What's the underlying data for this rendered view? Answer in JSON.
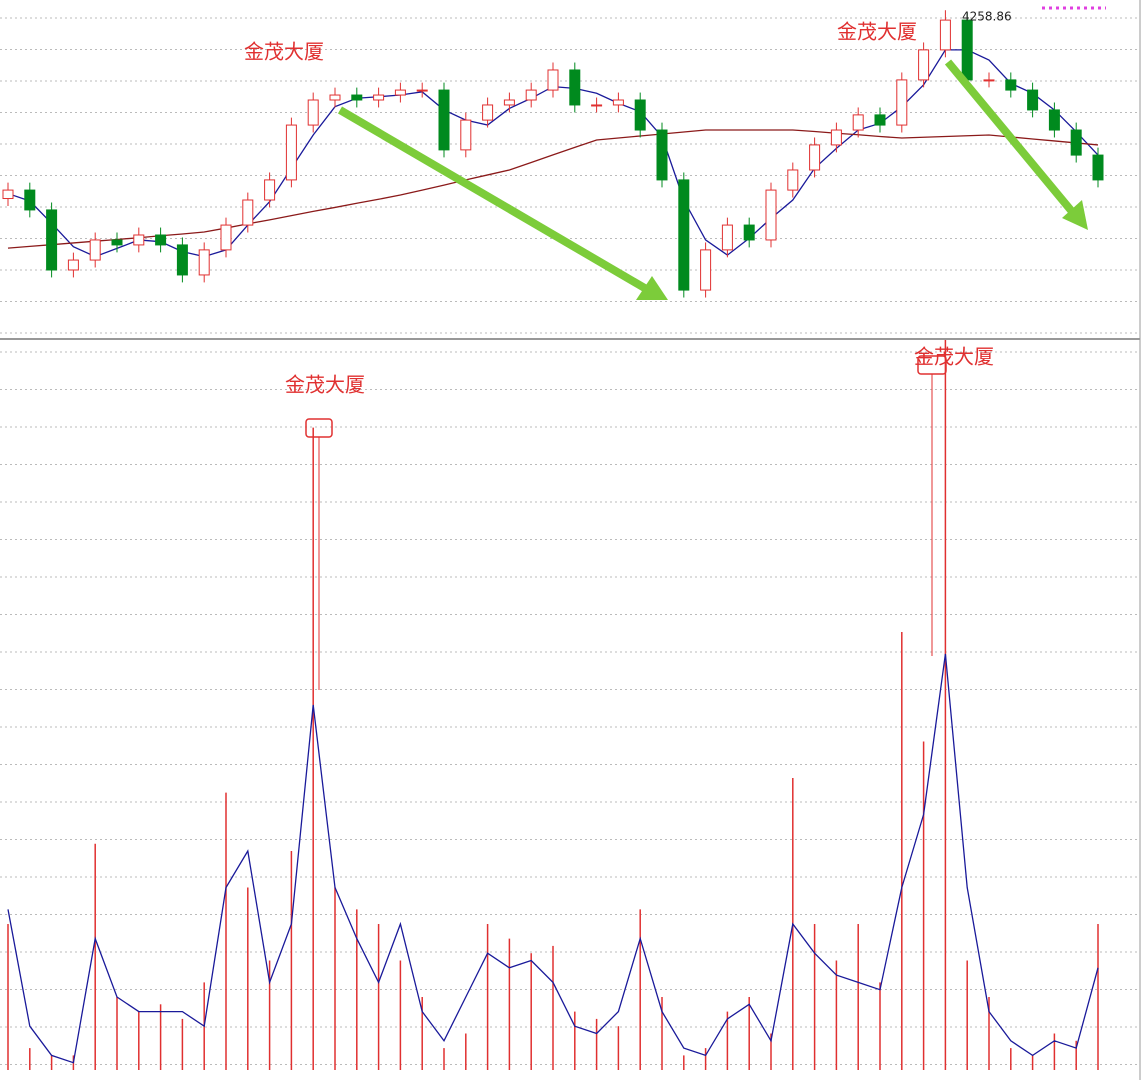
{
  "chart_data": {
    "type": "candlestick",
    "annotations": [
      "金茂大厦",
      "金茂大厦",
      "金茂大厦",
      "金茂大厦"
    ],
    "up_color": "#e03030",
    "down_color": "#008a1e",
    "ylim": [
      2950,
      4300
    ],
    "open": [
      3500,
      3534,
      3454,
      3212,
      3252,
      3333,
      3313,
      3353,
      3313,
      3192,
      3293,
      3393,
      3494,
      3575,
      3796,
      3897,
      3917,
      3897,
      3917,
      3937,
      3937,
      3696,
      3816,
      3877,
      3897,
      3937,
      4018,
      3877,
      3877,
      3897,
      3776,
      3575,
      3131,
      3293,
      3393,
      3333,
      3534,
      3615,
      3716,
      3776,
      3837,
      3796,
      3978,
      4099,
      4219,
      3978,
      3978,
      3937,
      3857,
      3776,
      3675
    ],
    "high": [
      3564,
      3564,
      3484,
      3282,
      3363,
      3363,
      3383,
      3383,
      3343,
      3323,
      3423,
      3524,
      3605,
      3826,
      3927,
      3947,
      3947,
      3947,
      3967,
      3967,
      3967,
      3846,
      3907,
      3927,
      3967,
      4048,
      4048,
      3907,
      3927,
      3927,
      3806,
      3605,
      3323,
      3423,
      3423,
      3564,
      3645,
      3746,
      3806,
      3867,
      3867,
      4008,
      4129,
      4258.86,
      4249,
      4008,
      4008,
      3967,
      3887,
      3806,
      3705
    ],
    "low": [
      3470,
      3424,
      3182,
      3182,
      3222,
      3283,
      3283,
      3283,
      3162,
      3162,
      3263,
      3363,
      3464,
      3545,
      3766,
      3867,
      3867,
      3867,
      3887,
      3907,
      3666,
      3666,
      3786,
      3847,
      3867,
      3907,
      3847,
      3847,
      3847,
      3746,
      3545,
      3101,
      3101,
      3263,
      3303,
      3303,
      3504,
      3585,
      3686,
      3746,
      3766,
      3766,
      3948,
      4069,
      3948,
      3948,
      3907,
      3827,
      3746,
      3645,
      3545
    ],
    "close": [
      3534,
      3454,
      3212,
      3252,
      3333,
      3313,
      3353,
      3313,
      3192,
      3293,
      3393,
      3494,
      3575,
      3796,
      3897,
      3917,
      3897,
      3917,
      3937,
      3937,
      3696,
      3816,
      3877,
      3897,
      3937,
      4018,
      3877,
      3877,
      3897,
      3776,
      3575,
      3131,
      3293,
      3393,
      3333,
      3534,
      3615,
      3716,
      3776,
      3837,
      3796,
      3978,
      4099,
      4219,
      3978,
      3978,
      3937,
      3857,
      3776,
      3675,
      3575
    ],
    "series": [
      {
        "color": "#1a1a9a",
        "values": [
          3520,
          3490,
          3400,
          3306,
          3266,
          3299,
          3333,
          3326,
          3286,
          3266,
          3293,
          3393,
          3487,
          3622,
          3756,
          3870,
          3904,
          3910,
          3917,
          3930,
          3857,
          3816,
          3796,
          3863,
          3904,
          3951,
          3944,
          3924,
          3884,
          3850,
          3749,
          3494,
          3333,
          3272,
          3340,
          3420,
          3494,
          3622,
          3702,
          3776,
          3803,
          3870,
          3958,
          4099,
          4099,
          4058,
          3964,
          3924,
          3857,
          3769,
          3675
        ]
      },
      {
        "color": "#8b1a1a",
        "values": [
          3300,
          3307,
          3314,
          3321,
          3328,
          3335,
          3342,
          3350,
          3357,
          3365,
          3381,
          3398,
          3414,
          3431,
          3448,
          3464,
          3481,
          3497,
          3514,
          3534,
          3554,
          3575,
          3595,
          3615,
          3645,
          3676,
          3706,
          3736,
          3744,
          3752,
          3760,
          3768,
          3776,
          3776,
          3776,
          3776,
          3776,
          3770,
          3763,
          3757,
          3750,
          3744,
          3747,
          3750,
          3753,
          3756,
          3748,
          3740,
          3732,
          3724,
          3716
        ]
      }
    ],
    "volume": {
      "color": "#e03030",
      "ylim": [
        0,
        100
      ],
      "values": [
        20,
        3,
        2,
        2,
        31,
        10,
        8,
        9,
        7,
        12,
        38,
        25,
        15,
        30,
        88,
        25,
        22,
        20,
        15,
        10,
        3,
        5,
        20,
        18,
        16,
        17,
        8,
        7,
        6,
        22,
        10,
        2,
        3,
        8,
        10,
        5,
        40,
        20,
        15,
        20,
        12,
        60,
        45,
        100,
        15,
        10,
        3,
        2,
        5,
        4,
        20
      ],
      "ma": {
        "color": "#1a1a9a",
        "values": [
          22,
          6,
          2,
          1,
          18,
          10,
          8,
          8,
          8,
          6,
          25,
          30,
          12,
          20,
          50,
          25,
          18,
          12,
          20,
          8,
          4,
          10,
          16,
          14,
          15,
          12,
          6,
          5,
          8,
          18,
          8,
          3,
          2,
          7,
          9,
          4,
          20,
          16,
          13,
          12,
          11,
          25,
          35,
          57,
          25,
          8,
          4,
          2,
          4,
          3,
          14
        ]
      }
    }
  }
}
